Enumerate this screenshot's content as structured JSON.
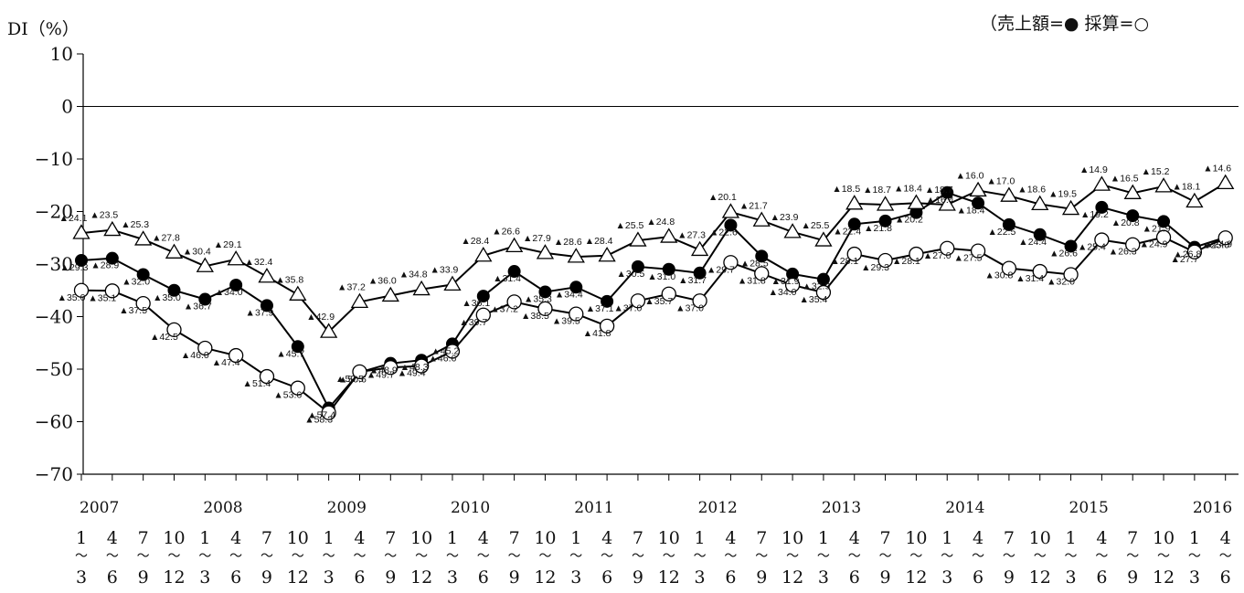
{
  "chart_data": {
    "type": "line",
    "ylabel": "DI（%）",
    "legend_text": "（売上額=● 採算=○",
    "legend_placement": "top-right",
    "ylim": [
      -70,
      10
    ],
    "yticks": [
      10,
      0,
      -10,
      -20,
      -30,
      -40,
      -50,
      -60,
      -70
    ],
    "ytick_labels": [
      "10",
      "0",
      "−10",
      "−20",
      "−30",
      "−40",
      "−50",
      "−60",
      "−70"
    ],
    "grid": false,
    "years": [
      "2007",
      "2008",
      "2009",
      "2010",
      "2011",
      "2012",
      "2013",
      "2014",
      "2015",
      "2016"
    ],
    "quarter_start_labels": [
      "1",
      "4",
      "7",
      "10",
      "1",
      "4",
      "7",
      "10",
      "1",
      "4",
      "7",
      "10",
      "1",
      "4",
      "7",
      "10",
      "1",
      "4",
      "7",
      "10",
      "1",
      "4",
      "7",
      "10",
      "1",
      "4",
      "7",
      "10",
      "1",
      "4",
      "7",
      "10",
      "1",
      "4",
      "7",
      "10",
      "1",
      "4",
      "7",
      "10"
    ],
    "quarter_tilde": "～",
    "quarter_end_labels": [
      "3",
      "6",
      "9",
      "12",
      "3",
      "6",
      "9",
      "12",
      "3",
      "6",
      "9",
      "12",
      "3",
      "6",
      "9",
      "12",
      "3",
      "6",
      "9",
      "12",
      "3",
      "6",
      "9",
      "12",
      "3",
      "6",
      "9",
      "12",
      "3",
      "6",
      "9",
      "12",
      "3",
      "6",
      "9",
      "12",
      "3",
      "6",
      "9",
      "12"
    ],
    "series": [
      {
        "marker": "filled-circle",
        "values": [
          -29.3,
          -28.9,
          -32.0,
          -35.0,
          -36.7,
          -34.0,
          -37.9,
          -45.7,
          -57.4,
          -50.6,
          -48.9,
          -48.3,
          -45.2,
          -36.1,
          -31.4,
          -35.3,
          -34.4,
          -37.1,
          -30.5,
          -31.0,
          -31.7,
          -22.6,
          -28.5,
          -31.9,
          -32.9,
          -22.4,
          -21.8,
          -20.2,
          -16.4,
          -18.4,
          -22.5,
          -24.4,
          -26.6,
          -19.2,
          -20.8,
          -21.9,
          -26.8,
          -24.9
        ],
        "labels": [
          "▲29.3",
          "▲28.9",
          "▲32.0",
          "▲35.0",
          "▲36.7",
          "▲34.0",
          "▲37.9",
          "▲45.7",
          "▲57.4",
          "▲50.6",
          "▲48.9",
          "▲48.3",
          "▲45.2",
          "▲36.1",
          "▲31.4",
          "▲35.3",
          "▲34.4",
          "▲37.1",
          "▲30.5",
          "▲31.0",
          "▲31.7",
          "▲22.6",
          "▲28.5",
          "▲31.9",
          "▲32.9",
          "▲22.4",
          "▲21.8",
          "▲20.2",
          "▲16.4",
          "▲18.4",
          "▲22.5",
          "▲24.4",
          "▲26.6",
          "▲19.2",
          "▲20.8",
          "▲21.9",
          "▲26.8",
          "▲24.9"
        ]
      },
      {
        "marker": "open-circle",
        "values": [
          -35.0,
          -35.1,
          -37.5,
          -42.5,
          -46.0,
          -47.4,
          -51.4,
          -53.6,
          -58.3,
          -50.5,
          -49.7,
          -49.4,
          -46.6,
          -39.7,
          -37.2,
          -38.5,
          -39.5,
          -41.8,
          -37.0,
          -35.7,
          -37.0,
          -29.7,
          -31.8,
          -34.0,
          -35.4,
          -28.1,
          -29.3,
          -28.1,
          -27.0,
          -27.5,
          -30.8,
          -31.4,
          -32.0,
          -25.4,
          -26.3,
          -24.9,
          -27.7,
          -25.0
        ],
        "labels": [
          "▲35.0",
          "▲35.1",
          "▲37.5",
          "▲42.5",
          "▲46.0",
          "▲47.4",
          "▲51.4",
          "▲53.6",
          "▲58.3",
          "▲50.5",
          "▲49.7",
          "▲49.4",
          "▲46.6",
          "▲39.7",
          "▲37.2",
          "▲38.5",
          "▲39.5",
          "▲41.8",
          "▲37.0",
          "▲35.7",
          "▲37.0",
          "▲29.7",
          "▲31.8",
          "▲34.0",
          "▲35.4",
          "▲28.1",
          "▲29.3",
          "▲28.1",
          "▲27.0",
          "▲27.5",
          "▲30.8",
          "▲31.4",
          "▲32.0",
          "▲25.4",
          "▲26.3",
          "▲24.9",
          "▲27.7",
          "▲25.0"
        ]
      },
      {
        "marker": "open-triangle",
        "values": [
          -24.1,
          -23.5,
          -25.3,
          -27.8,
          -30.4,
          -29.1,
          -32.4,
          -35.8,
          -42.9,
          -37.2,
          -36.0,
          -34.8,
          -33.9,
          -28.4,
          -26.6,
          -27.9,
          -28.6,
          -28.4,
          -25.5,
          -24.8,
          -27.3,
          -20.1,
          -21.7,
          -23.9,
          -25.5,
          -18.5,
          -18.7,
          -18.4,
          -18.7,
          -16.0,
          -17.0,
          -18.6,
          -19.5,
          -14.9,
          -16.5,
          -15.2,
          -18.1,
          -14.6
        ],
        "labels": [
          "▲24.1",
          "▲23.5",
          "▲25.3",
          "▲27.8",
          "▲30.4",
          "▲29.1",
          "▲32.4",
          "▲35.8",
          "▲42.9",
          "▲37.2",
          "▲36.0",
          "▲34.8",
          "▲33.9",
          "▲28.4",
          "▲26.6",
          "▲27.9",
          "▲28.6",
          "▲28.4",
          "▲25.5",
          "▲24.8",
          "▲27.3",
          "▲20.1",
          "▲21.7",
          "▲23.9",
          "▲25.5",
          "▲18.5",
          "▲18.7",
          "▲18.4",
          "▲18.7",
          "▲16.0",
          "▲17.0",
          "▲18.6",
          "▲19.5",
          "▲14.9",
          "▲16.5",
          "▲15.2",
          "▲18.1",
          "▲14.6"
        ]
      }
    ]
  }
}
